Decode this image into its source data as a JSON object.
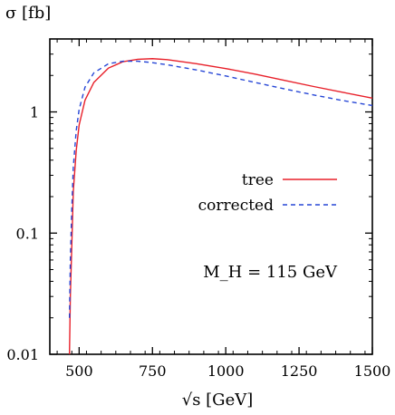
{
  "chart_data": {
    "type": "line",
    "title": "",
    "ylabel": "σ [fb]",
    "xlabel": "√s [GeV]",
    "xlim": [
      400,
      1500
    ],
    "ylim": [
      0.01,
      4
    ],
    "yscale": "log",
    "grid": false,
    "x_ticks": [
      500,
      750,
      1000,
      1250,
      1500
    ],
    "y_ticks": [
      0.01,
      0.1,
      1
    ],
    "y_tick_labels": [
      "0.01",
      "0.1",
      "1"
    ],
    "legend_position": "right-middle",
    "annotation": "M_H = 115 GeV",
    "series": [
      {
        "name": "tree",
        "style": "solid",
        "color": "#e8202a",
        "x": [
          467,
          470,
          475,
          480,
          490,
          500,
          520,
          550,
          600,
          650,
          700,
          750,
          800,
          900,
          1000,
          1100,
          1200,
          1300,
          1400,
          1500
        ],
        "y": [
          0.01,
          0.03,
          0.08,
          0.22,
          0.48,
          0.78,
          1.25,
          1.75,
          2.3,
          2.6,
          2.72,
          2.75,
          2.7,
          2.5,
          2.28,
          2.05,
          1.82,
          1.62,
          1.45,
          1.3
        ]
      },
      {
        "name": "corrected",
        "style": "dashed",
        "color": "#2646d6",
        "x": [
          467,
          470,
          475,
          480,
          490,
          500,
          520,
          550,
          600,
          650,
          700,
          750,
          800,
          900,
          1000,
          1100,
          1200,
          1300,
          1400,
          1500
        ],
        "y": [
          0.02,
          0.06,
          0.16,
          0.35,
          0.7,
          1.05,
          1.6,
          2.1,
          2.5,
          2.62,
          2.62,
          2.55,
          2.45,
          2.22,
          1.98,
          1.75,
          1.55,
          1.38,
          1.24,
          1.13
        ]
      }
    ]
  }
}
